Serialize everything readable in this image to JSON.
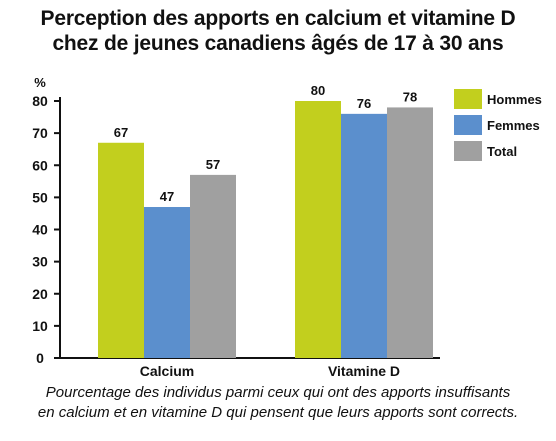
{
  "title_lines": [
    "Perception des apports en calcium et vitamine D",
    "chez de jeunes canadiens âgés de 17 à 30 ans"
  ],
  "caption_lines": [
    "Pourcentage des individus parmi ceux qui ont des apports insuffisants",
    "en calcium et en vitamine D qui pensent que leurs apports sont corrects."
  ],
  "chart_data": {
    "type": "bar",
    "title": "Perception des apports en calcium et vitamine D chez de jeunes canadiens âgés de 17 à 30 ans",
    "ylabel": "%",
    "xlabel": "",
    "ylim": [
      0,
      80
    ],
    "yticks": [
      0,
      10,
      20,
      30,
      40,
      50,
      60,
      70,
      80
    ],
    "grid": false,
    "legend_position": "right",
    "categories": [
      "Calcium",
      "Vitamine D"
    ],
    "series": [
      {
        "name": "Hommes",
        "values": [
          67,
          80
        ],
        "color": "#c2cf1e"
      },
      {
        "name": "Femmes",
        "values": [
          47,
          76
        ],
        "color": "#5b8fcd"
      },
      {
        "name": "Total",
        "values": [
          57,
          78
        ],
        "color": "#a0a0a0"
      }
    ]
  }
}
